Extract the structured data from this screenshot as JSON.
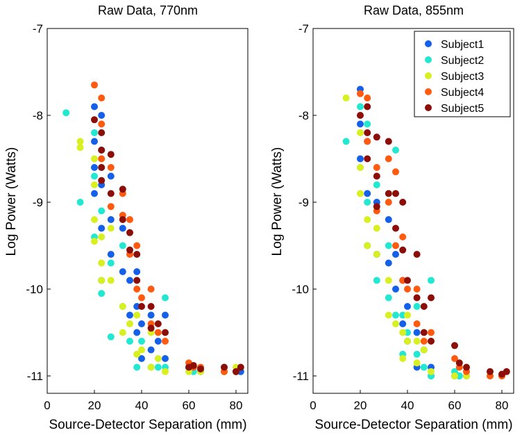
{
  "chart_data": [
    {
      "type": "scatter",
      "title": "Raw Data, 770nm",
      "xlabel": "Source-Detector Separation (mm)",
      "ylabel": "Log Power (Watts)",
      "xlim": [
        0,
        85
      ],
      "ylim": [
        -11.2,
        -7
      ],
      "xticks": [
        "0",
        "20",
        "40",
        "60",
        "80"
      ],
      "yticks": [
        "-7",
        "-8",
        "-9",
        "-10",
        "-11"
      ],
      "grid": false,
      "legend": null,
      "series": [
        {
          "name": "Subject1",
          "color": "#1560e8",
          "points": [
            [
              20,
              -7.9
            ],
            [
              20,
              -8.3
            ],
            [
              20,
              -8.6
            ],
            [
              20,
              -8.9
            ],
            [
              23,
              -8.0
            ],
            [
              23,
              -8.4
            ],
            [
              23,
              -8.8
            ],
            [
              23,
              -9.3
            ],
            [
              23,
              -9.9
            ],
            [
              27,
              -8.7
            ],
            [
              27,
              -9.2
            ],
            [
              27,
              -9.6
            ],
            [
              32,
              -9.3
            ],
            [
              32,
              -9.8
            ],
            [
              35,
              -9.9
            ],
            [
              35,
              -10.3
            ],
            [
              38,
              -9.8
            ],
            [
              38,
              -10.2
            ],
            [
              38,
              -10.5
            ],
            [
              40,
              -10.4
            ],
            [
              40,
              -10.8
            ],
            [
              44,
              -10.3
            ],
            [
              44,
              -10.7
            ],
            [
              47,
              -10.6
            ],
            [
              50,
              -10.3
            ],
            [
              50,
              -10.8
            ],
            [
              60,
              -10.9
            ],
            [
              62,
              -10.9
            ],
            [
              65,
              -10.95
            ],
            [
              75,
              -10.95
            ],
            [
              80,
              -10.95
            ],
            [
              82,
              -10.95
            ]
          ]
        },
        {
          "name": "Subject2",
          "color": "#22e8d2",
          "points": [
            [
              8,
              -7.97
            ],
            [
              14,
              -9.0
            ],
            [
              20,
              -8.2
            ],
            [
              20,
              -8.7
            ],
            [
              20,
              -9.4
            ],
            [
              23,
              -8.6
            ],
            [
              23,
              -9.1
            ],
            [
              23,
              -10.05
            ],
            [
              27,
              -9.7
            ],
            [
              27,
              -10.55
            ],
            [
              32,
              -9.5
            ],
            [
              32,
              -10.2
            ],
            [
              35,
              -10.6
            ],
            [
              38,
              -10.9
            ],
            [
              40,
              -10.6
            ],
            [
              44,
              -10.9
            ],
            [
              47,
              -10.9
            ],
            [
              50,
              -10.1
            ],
            [
              50,
              -10.9
            ],
            [
              60,
              -10.9
            ],
            [
              62,
              -10.95
            ],
            [
              65,
              -10.9
            ],
            [
              75,
              -10.9
            ],
            [
              80,
              -10.95
            ]
          ]
        },
        {
          "name": "Subject3",
          "color": "#d8f020",
          "points": [
            [
              14,
              -8.3
            ],
            [
              14,
              -8.37
            ],
            [
              20,
              -8.5
            ],
            [
              20,
              -8.8
            ],
            [
              20,
              -9.2
            ],
            [
              20,
              -9.45
            ],
            [
              23,
              -9.4
            ],
            [
              23,
              -9.7
            ],
            [
              23,
              -9.9
            ],
            [
              27,
              -9.3
            ],
            [
              27,
              -9.9
            ],
            [
              32,
              -10.2
            ],
            [
              32,
              -10.5
            ],
            [
              35,
              -10.4
            ],
            [
              38,
              -10.3
            ],
            [
              38,
              -10.75
            ],
            [
              40,
              -10.7
            ],
            [
              44,
              -10.5
            ],
            [
              44,
              -10.9
            ],
            [
              47,
              -10.8
            ],
            [
              50,
              -10.95
            ],
            [
              60,
              -10.95
            ],
            [
              65,
              -10.95
            ],
            [
              75,
              -10.95
            ],
            [
              80,
              -10.9
            ]
          ]
        },
        {
          "name": "Subject4",
          "color": "#ff5a10",
          "points": [
            [
              20,
              -7.65
            ],
            [
              23,
              -7.8
            ],
            [
              23,
              -8.1
            ],
            [
              23,
              -8.5
            ],
            [
              27,
              -8.6
            ],
            [
              27,
              -9.05
            ],
            [
              32,
              -8.9
            ],
            [
              32,
              -9.15
            ],
            [
              35,
              -9.2
            ],
            [
              35,
              -9.6
            ],
            [
              38,
              -9.5
            ],
            [
              38,
              -10.0
            ],
            [
              40,
              -10.1
            ],
            [
              44,
              -10.0
            ],
            [
              44,
              -10.4
            ],
            [
              47,
              -10.5
            ],
            [
              50,
              -10.6
            ],
            [
              60,
              -10.85
            ],
            [
              62,
              -10.9
            ],
            [
              65,
              -10.9
            ],
            [
              75,
              -10.95
            ],
            [
              80,
              -10.95
            ]
          ]
        },
        {
          "name": "Subject5",
          "color": "#8c0e08",
          "points": [
            [
              20,
              -8.05
            ],
            [
              23,
              -8.2
            ],
            [
              23,
              -8.4
            ],
            [
              23,
              -8.6
            ],
            [
              23,
              -8.75
            ],
            [
              27,
              -8.45
            ],
            [
              27,
              -8.9
            ],
            [
              32,
              -8.85
            ],
            [
              32,
              -9.2
            ],
            [
              35,
              -9.35
            ],
            [
              35,
              -9.55
            ],
            [
              38,
              -9.6
            ],
            [
              38,
              -9.9
            ],
            [
              40,
              -10.2
            ],
            [
              44,
              -10.2
            ],
            [
              44,
              -10.45
            ],
            [
              47,
              -10.4
            ],
            [
              50,
              -10.5
            ],
            [
              60,
              -10.9
            ],
            [
              62,
              -10.88
            ],
            [
              65,
              -10.92
            ],
            [
              75,
              -10.9
            ],
            [
              80,
              -10.95
            ],
            [
              82,
              -10.9
            ]
          ]
        }
      ]
    },
    {
      "type": "scatter",
      "title": "Raw Data, 855nm",
      "xlabel": "Source-Detector Separation (mm)",
      "ylabel": "Log Power (Watts)",
      "xlim": [
        0,
        85
      ],
      "ylim": [
        -11.2,
        -7
      ],
      "xticks": [
        "0",
        "20",
        "40",
        "60",
        "80"
      ],
      "yticks": [
        "-7",
        "-8",
        "-9",
        "-10",
        "-11"
      ],
      "grid": false,
      "legend": "top-right",
      "series": [
        {
          "name": "Subject1",
          "color": "#1560e8",
          "points": [
            [
              20,
              -7.7
            ],
            [
              20,
              -8.1
            ],
            [
              20,
              -8.5
            ],
            [
              23,
              -8.3
            ],
            [
              23,
              -8.9
            ],
            [
              23,
              -9.5
            ],
            [
              27,
              -9.0
            ],
            [
              27,
              -9.6
            ],
            [
              32,
              -9.2
            ],
            [
              32,
              -9.7
            ],
            [
              35,
              -9.6
            ],
            [
              35,
              -10.0
            ],
            [
              38,
              -9.9
            ],
            [
              38,
              -10.4
            ],
            [
              40,
              -10.2
            ],
            [
              40,
              -10.6
            ],
            [
              44,
              -10.5
            ],
            [
              44,
              -10.9
            ],
            [
              47,
              -10.7
            ],
            [
              50,
              -10.9
            ],
            [
              50,
              -11.0
            ],
            [
              60,
              -11.0
            ],
            [
              62,
              -11.0
            ],
            [
              65,
              -11.0
            ],
            [
              75,
              -11.0
            ],
            [
              80,
              -11.0
            ]
          ]
        },
        {
          "name": "Subject2",
          "color": "#22e8d2",
          "points": [
            [
              14,
              -8.3
            ],
            [
              20,
              -7.9
            ],
            [
              20,
              -8.6
            ],
            [
              23,
              -8.1
            ],
            [
              23,
              -9.0
            ],
            [
              27,
              -8.8
            ],
            [
              27,
              -9.9
            ],
            [
              32,
              -9.5
            ],
            [
              32,
              -10.1
            ],
            [
              35,
              -8.4
            ],
            [
              35,
              -10.3
            ],
            [
              38,
              -10.3
            ],
            [
              38,
              -10.75
            ],
            [
              40,
              -10.5
            ],
            [
              44,
              -10.2
            ],
            [
              44,
              -10.75
            ],
            [
              47,
              -10.9
            ],
            [
              50,
              -9.9
            ],
            [
              50,
              -11.0
            ],
            [
              60,
              -10.95
            ],
            [
              62,
              -11.0
            ],
            [
              65,
              -10.95
            ],
            [
              75,
              -11.0
            ],
            [
              80,
              -11.0
            ]
          ]
        },
        {
          "name": "Subject3",
          "color": "#d8f020",
          "points": [
            [
              14,
              -7.8
            ],
            [
              20,
              -8.2
            ],
            [
              20,
              -8.6
            ],
            [
              20,
              -8.9
            ],
            [
              23,
              -9.2
            ],
            [
              23,
              -9.5
            ],
            [
              27,
              -9.3
            ],
            [
              27,
              -9.6
            ],
            [
              32,
              -9.9
            ],
            [
              32,
              -10.3
            ],
            [
              35,
              -10.4
            ],
            [
              38,
              -10.5
            ],
            [
              38,
              -10.8
            ],
            [
              40,
              -10.3
            ],
            [
              40,
              -10.6
            ],
            [
              44,
              -10.6
            ],
            [
              44,
              -10.85
            ],
            [
              47,
              -10.7
            ],
            [
              50,
              -10.95
            ],
            [
              60,
              -11.0
            ],
            [
              65,
              -11.0
            ],
            [
              75,
              -11.0
            ],
            [
              80,
              -11.0
            ]
          ]
        },
        {
          "name": "Subject4",
          "color": "#ff5a10",
          "points": [
            [
              20,
              -7.75
            ],
            [
              23,
              -7.8
            ],
            [
              23,
              -8.3
            ],
            [
              27,
              -8.6
            ],
            [
              27,
              -9.1
            ],
            [
              32,
              -8.5
            ],
            [
              32,
              -9.0
            ],
            [
              35,
              -8.65
            ],
            [
              35,
              -9.5
            ],
            [
              38,
              -9.4
            ],
            [
              38,
              -9.9
            ],
            [
              40,
              -10.0
            ],
            [
              44,
              -10.0
            ],
            [
              44,
              -10.4
            ],
            [
              47,
              -10.6
            ],
            [
              50,
              -10.5
            ],
            [
              60,
              -10.8
            ],
            [
              62,
              -10.9
            ],
            [
              65,
              -10.95
            ],
            [
              75,
              -11.0
            ],
            [
              80,
              -11.0
            ]
          ]
        },
        {
          "name": "Subject5",
          "color": "#8c0e08",
          "points": [
            [
              20,
              -8.0
            ],
            [
              23,
              -7.9
            ],
            [
              23,
              -8.2
            ],
            [
              23,
              -8.5
            ],
            [
              27,
              -8.25
            ],
            [
              27,
              -8.7
            ],
            [
              27,
              -9.05
            ],
            [
              32,
              -8.3
            ],
            [
              32,
              -8.9
            ],
            [
              35,
              -8.9
            ],
            [
              35,
              -9.3
            ],
            [
              38,
              -9.0
            ],
            [
              38,
              -9.55
            ],
            [
              40,
              -9.9
            ],
            [
              44,
              -9.6
            ],
            [
              44,
              -10.1
            ],
            [
              47,
              -10.2
            ],
            [
              47,
              -10.5
            ],
            [
              50,
              -10.1
            ],
            [
              50,
              -10.6
            ],
            [
              60,
              -10.65
            ],
            [
              62,
              -10.85
            ],
            [
              65,
              -10.9
            ],
            [
              75,
              -10.95
            ],
            [
              80,
              -10.98
            ],
            [
              82,
              -10.95
            ]
          ]
        }
      ]
    }
  ]
}
